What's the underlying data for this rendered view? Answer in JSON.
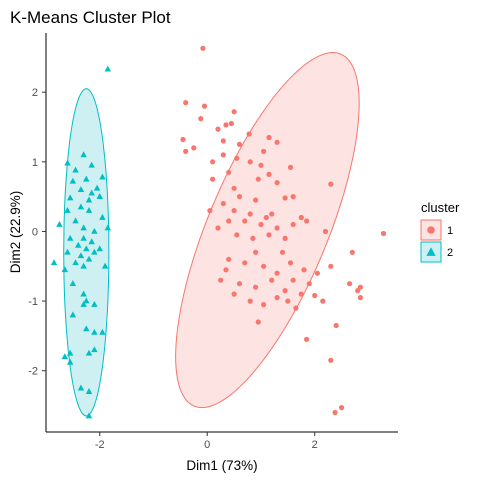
{
  "chart_data": {
    "type": "scatter",
    "title": "K-Means Cluster Plot",
    "xlabel": "Dim1 (73%)",
    "ylabel": "Dim2 (22.9%)",
    "xlim": [
      -3.0,
      3.55
    ],
    "ylim": [
      -2.88,
      2.85
    ],
    "x_ticks": [
      -2,
      0,
      2
    ],
    "y_ticks": [
      -2,
      -1,
      0,
      1,
      2
    ],
    "grid": false,
    "legend": {
      "title": "cluster",
      "position": "right",
      "items": [
        {
          "label": "1",
          "shape": "circle",
          "color": "#F8766D"
        },
        {
          "label": "2",
          "shape": "triangle",
          "color": "#00BFC4"
        }
      ]
    },
    "clusters": [
      {
        "name": "1",
        "shape": "circle",
        "color": "#F8766D",
        "fill": "#FDE3E1",
        "points": [
          [
            -0.08,
            2.63
          ],
          [
            -0.4,
            1.85
          ],
          [
            -0.45,
            1.32
          ],
          [
            -0.05,
            1.8
          ],
          [
            -0.12,
            1.62
          ],
          [
            0.5,
            1.72
          ],
          [
            0.45,
            1.55
          ],
          [
            0.35,
            1.53
          ],
          [
            -0.4,
            1.15
          ],
          [
            0.2,
            1.47
          ],
          [
            0.3,
            1.3
          ],
          [
            -0.25,
            1.2
          ],
          [
            0.6,
            1.25
          ],
          [
            0.78,
            1.4
          ],
          [
            1.15,
            1.35
          ],
          [
            1.3,
            1.28
          ],
          [
            1.05,
            1.15
          ],
          [
            0.3,
            1.1
          ],
          [
            0.55,
            1.05
          ],
          [
            0.1,
            1.0
          ],
          [
            0.8,
            1.0
          ],
          [
            1.0,
            0.95
          ],
          [
            1.55,
            0.92
          ],
          [
            1.15,
            0.82
          ],
          [
            0.4,
            0.85
          ],
          [
            0.95,
            0.75
          ],
          [
            0.1,
            0.75
          ],
          [
            0.5,
            0.62
          ],
          [
            1.3,
            0.7
          ],
          [
            1.6,
            0.5
          ],
          [
            0.3,
            0.4
          ],
          [
            0.6,
            0.5
          ],
          [
            0.9,
            0.45
          ],
          [
            1.45,
            0.48
          ],
          [
            2.3,
            0.68
          ],
          [
            0.05,
            0.3
          ],
          [
            0.5,
            0.3
          ],
          [
            0.8,
            0.25
          ],
          [
            1.1,
            0.2
          ],
          [
            1.2,
            0.25
          ],
          [
            1.75,
            0.2
          ],
          [
            0.4,
            0.15
          ],
          [
            0.7,
            0.15
          ],
          [
            1.0,
            0.1
          ],
          [
            1.3,
            0.05
          ],
          [
            1.6,
            0.1
          ],
          [
            1.85,
            0.15
          ],
          [
            3.28,
            -0.03
          ],
          [
            0.2,
            0.05
          ],
          [
            0.55,
            -0.05
          ],
          [
            0.85,
            -0.1
          ],
          [
            1.15,
            -0.05
          ],
          [
            1.45,
            -0.1
          ],
          [
            2.2,
            0.0
          ],
          [
            0.9,
            -0.3
          ],
          [
            1.4,
            -0.3
          ],
          [
            1.55,
            -0.45
          ],
          [
            2.7,
            -0.3
          ],
          [
            0.4,
            -0.4
          ],
          [
            0.7,
            -0.45
          ],
          [
            1.05,
            -0.5
          ],
          [
            1.8,
            -0.55
          ],
          [
            2.05,
            -0.6
          ],
          [
            2.3,
            -0.5
          ],
          [
            0.35,
            -0.55
          ],
          [
            1.3,
            -0.6
          ],
          [
            1.9,
            -0.75
          ],
          [
            0.25,
            -0.7
          ],
          [
            0.6,
            -0.75
          ],
          [
            1.2,
            -0.7
          ],
          [
            1.6,
            -0.7
          ],
          [
            0.9,
            -0.8
          ],
          [
            1.45,
            -0.85
          ],
          [
            2.65,
            -0.75
          ],
          [
            0.5,
            -0.9
          ],
          [
            1.3,
            -0.95
          ],
          [
            1.75,
            -0.9
          ],
          [
            2.0,
            -0.92
          ],
          [
            2.8,
            -0.85
          ],
          [
            0.8,
            -1.0
          ],
          [
            1.05,
            -1.05
          ],
          [
            1.5,
            -1.0
          ],
          [
            2.15,
            -1.0
          ],
          [
            2.85,
            -0.95
          ],
          [
            1.65,
            -1.1
          ],
          [
            2.4,
            -1.35
          ],
          [
            0.95,
            -1.3
          ],
          [
            1.85,
            -1.55
          ],
          [
            2.3,
            -1.85
          ],
          [
            2.85,
            -0.8
          ],
          [
            2.5,
            -2.53
          ],
          [
            2.38,
            -2.6
          ]
        ]
      },
      {
        "name": "2",
        "shape": "triangle",
        "color": "#00BFC4",
        "fill": "#CFF0F2",
        "points": [
          [
            -1.85,
            2.33
          ],
          [
            -2.6,
            0.98
          ],
          [
            -2.3,
            1.1
          ],
          [
            -2.45,
            0.88
          ],
          [
            -2.15,
            0.95
          ],
          [
            -1.95,
            0.78
          ],
          [
            -2.25,
            0.75
          ],
          [
            -2.5,
            0.72
          ],
          [
            -2.05,
            0.62
          ],
          [
            -2.35,
            0.6
          ],
          [
            -2.15,
            0.55
          ],
          [
            -2.55,
            0.48
          ],
          [
            -2.2,
            0.45
          ],
          [
            -2.0,
            0.5
          ],
          [
            -2.35,
            0.35
          ],
          [
            -2.6,
            0.3
          ],
          [
            -2.2,
            0.3
          ],
          [
            -1.95,
            0.2
          ],
          [
            -2.45,
            0.15
          ],
          [
            -2.75,
            0.1
          ],
          [
            -2.3,
            0.05
          ],
          [
            -2.1,
            0.0
          ],
          [
            -1.85,
            0.05
          ],
          [
            -2.55,
            -0.1
          ],
          [
            -2.3,
            -0.1
          ],
          [
            -2.15,
            -0.15
          ],
          [
            -2.4,
            -0.2
          ],
          [
            -2.25,
            -0.25
          ],
          [
            -2.0,
            -0.25
          ],
          [
            -2.6,
            -0.3
          ],
          [
            -2.35,
            -0.35
          ],
          [
            -2.1,
            -0.3
          ],
          [
            -2.2,
            -0.4
          ],
          [
            -2.85,
            -0.45
          ],
          [
            -2.45,
            -0.45
          ],
          [
            -2.3,
            -0.5
          ],
          [
            -1.9,
            -0.5
          ],
          [
            -2.65,
            -0.55
          ],
          [
            -2.5,
            -0.75
          ],
          [
            -2.3,
            -0.9
          ],
          [
            -2.25,
            -1.0
          ],
          [
            -2.3,
            -1.05
          ],
          [
            -2.1,
            -1.05
          ],
          [
            -2.5,
            -1.2
          ],
          [
            -2.25,
            -1.4
          ],
          [
            -2.1,
            -1.45
          ],
          [
            -1.95,
            -1.45
          ],
          [
            -2.55,
            -1.75
          ],
          [
            -2.1,
            -1.7
          ],
          [
            -2.65,
            -1.8
          ],
          [
            -2.55,
            -1.88
          ],
          [
            -2.2,
            -1.75
          ],
          [
            -2.35,
            -2.25
          ],
          [
            -2.2,
            -2.3
          ],
          [
            -2.2,
            -2.65
          ]
        ]
      }
    ],
    "ellipses": [
      {
        "cluster": "1",
        "center": [
          1.12,
          0.02
        ],
        "rx": 1.06,
        "ry": 2.88,
        "rotation_deg": -30
      },
      {
        "cluster": "2",
        "center": [
          -2.25,
          -0.3
        ],
        "rx": 0.42,
        "ry": 2.35,
        "rotation_deg": 0
      }
    ]
  }
}
